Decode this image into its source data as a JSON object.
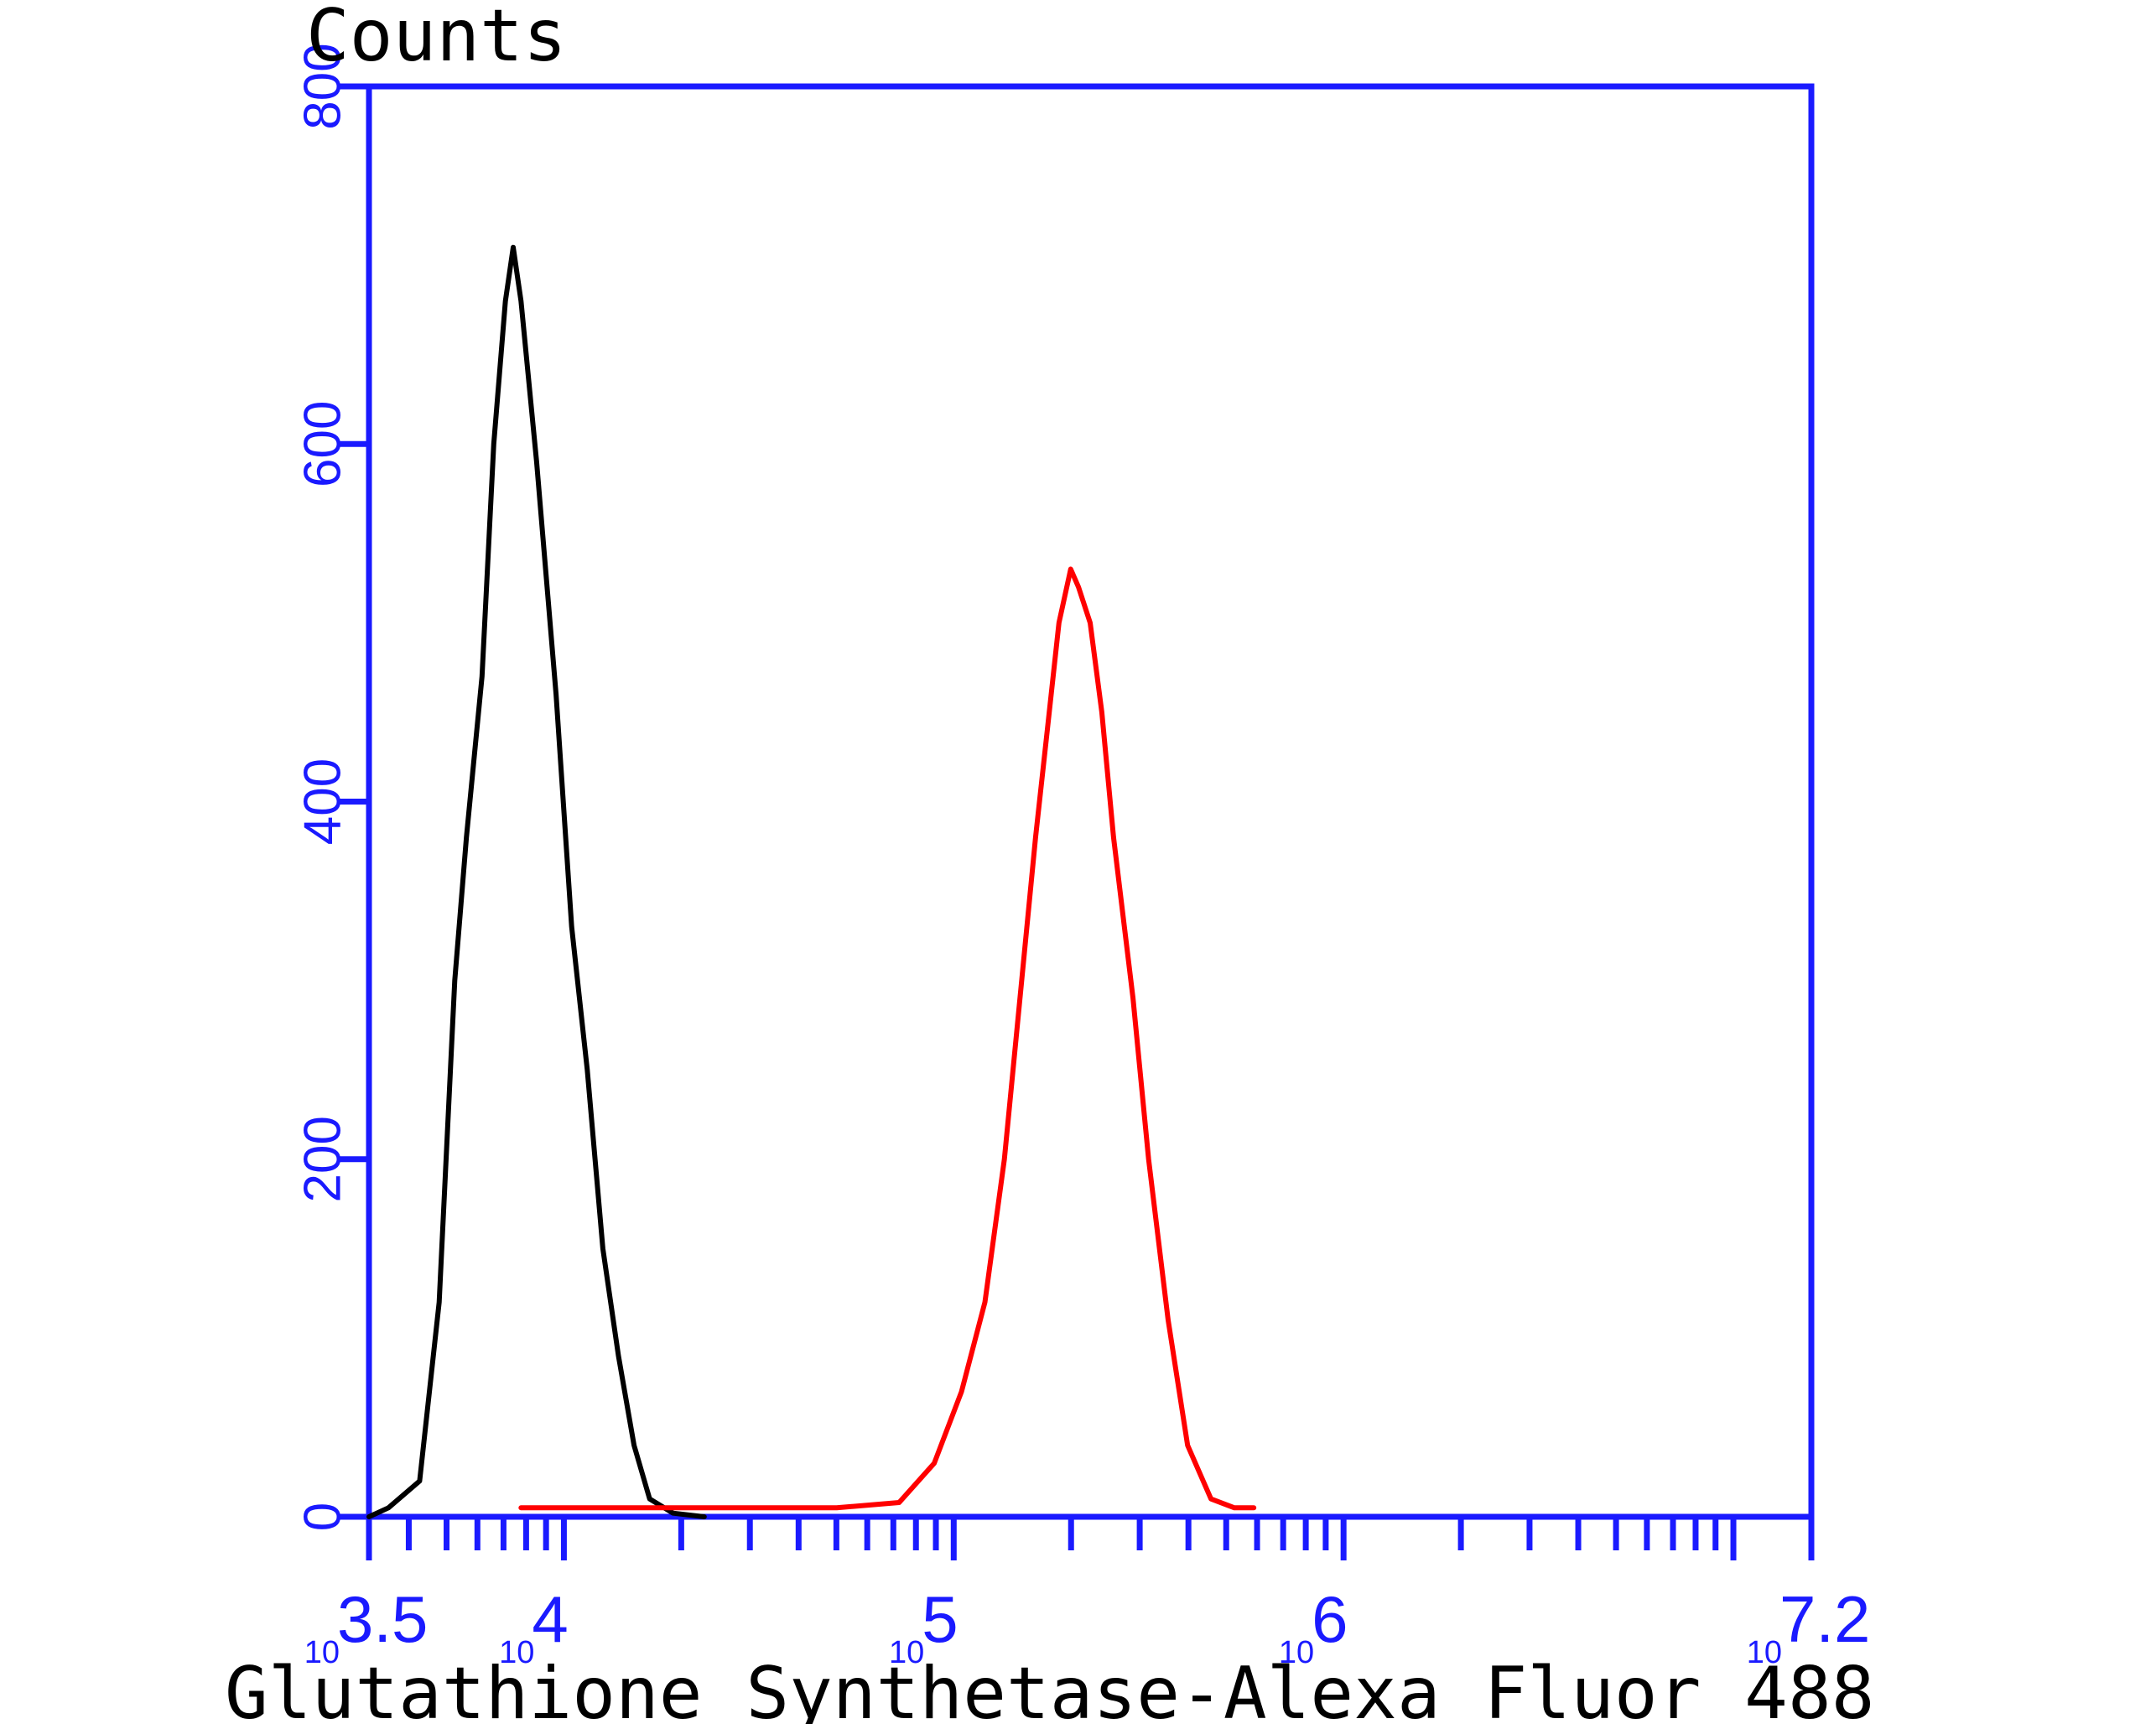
{
  "chart_data": {
    "type": "line",
    "title": "",
    "xlabel": "Glutathione Synthetase-Alexa Fluor 488",
    "ylabel": "Counts",
    "xscale": "log10",
    "xlim": [
      3.5,
      7.2
    ],
    "ylim": [
      0,
      800
    ],
    "y_ticks": [
      "0",
      "200",
      "400",
      "600",
      "800"
    ],
    "x_ticks": [
      {
        "base": "10",
        "exp": "3.5",
        "value": 3.5
      },
      {
        "base": "10",
        "exp": "4",
        "value": 4
      },
      {
        "base": "10",
        "exp": "5",
        "value": 5
      },
      {
        "base": "10",
        "exp": "6",
        "value": 6
      },
      {
        "base": "10",
        "exp": "7.2",
        "value": 7.2
      }
    ],
    "grid": false,
    "legend": "none",
    "axis_color": "#1a1aff",
    "series": [
      {
        "color": "#000000",
        "points": [
          [
            3.5,
            0
          ],
          [
            3.55,
            5
          ],
          [
            3.63,
            20
          ],
          [
            3.68,
            120
          ],
          [
            3.72,
            300
          ],
          [
            3.75,
            380
          ],
          [
            3.79,
            470
          ],
          [
            3.82,
            600
          ],
          [
            3.85,
            680
          ],
          [
            3.87,
            710
          ],
          [
            3.89,
            680
          ],
          [
            3.93,
            590
          ],
          [
            3.98,
            460
          ],
          [
            4.02,
            330
          ],
          [
            4.06,
            250
          ],
          [
            4.1,
            150
          ],
          [
            4.14,
            90
          ],
          [
            4.18,
            40
          ],
          [
            4.22,
            10
          ],
          [
            4.28,
            2
          ],
          [
            4.36,
            0
          ]
        ]
      },
      {
        "color": "#ff0000",
        "points": [
          [
            3.89,
            5
          ],
          [
            4.2,
            5
          ],
          [
            4.5,
            5
          ],
          [
            4.7,
            5
          ],
          [
            4.86,
            8
          ],
          [
            4.95,
            30
          ],
          [
            5.02,
            70
          ],
          [
            5.08,
            120
          ],
          [
            5.13,
            200
          ],
          [
            5.17,
            290
          ],
          [
            5.21,
            380
          ],
          [
            5.24,
            440
          ],
          [
            5.27,
            500
          ],
          [
            5.3,
            530
          ],
          [
            5.32,
            520
          ],
          [
            5.35,
            500
          ],
          [
            5.38,
            450
          ],
          [
            5.41,
            380
          ],
          [
            5.46,
            290
          ],
          [
            5.5,
            200
          ],
          [
            5.55,
            110
          ],
          [
            5.6,
            40
          ],
          [
            5.66,
            10
          ],
          [
            5.72,
            5
          ],
          [
            5.77,
            5
          ]
        ]
      }
    ]
  }
}
